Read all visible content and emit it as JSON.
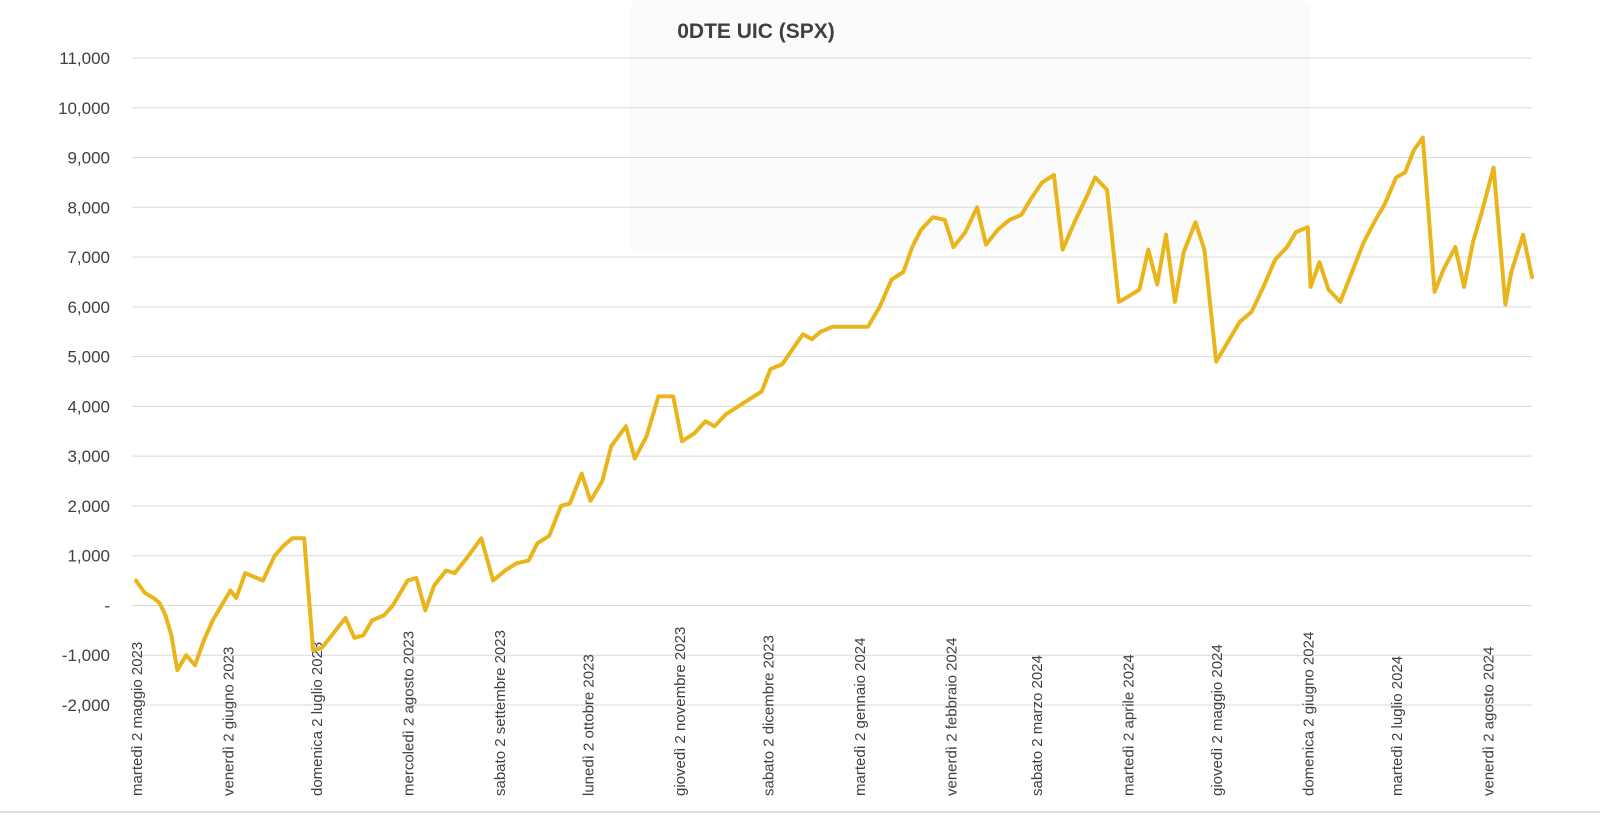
{
  "chart_data": {
    "type": "line",
    "title": "0DTE UIC (SPX)",
    "xlabel": "",
    "ylabel": "",
    "ylim": [
      -2000,
      11000
    ],
    "grid": true,
    "legend": "none",
    "line_color": "#e9b51a",
    "y_ticks": [
      {
        "value": 11000,
        "label": "11,000"
      },
      {
        "value": 10000,
        "label": "10,000"
      },
      {
        "value": 9000,
        "label": "9,000"
      },
      {
        "value": 8000,
        "label": "8,000"
      },
      {
        "value": 7000,
        "label": "7,000"
      },
      {
        "value": 6000,
        "label": "6,000"
      },
      {
        "value": 5000,
        "label": "5,000"
      },
      {
        "value": 4000,
        "label": "4,000"
      },
      {
        "value": 3000,
        "label": "3,000"
      },
      {
        "value": 2000,
        "label": "2,000"
      },
      {
        "value": 1000,
        "label": "1,000"
      },
      {
        "value": 0,
        "label": "-"
      },
      {
        "value": -1000,
        "label": "-1,000"
      },
      {
        "value": -2000,
        "label": "-2,000"
      }
    ],
    "x_ticks": [
      {
        "date": "2023-05-02",
        "label": "martedì 2 maggio 2023"
      },
      {
        "date": "2023-06-02",
        "label": "venerdì 2 giugno 2023"
      },
      {
        "date": "2023-07-02",
        "label": "domenica 2 luglio 2023"
      },
      {
        "date": "2023-08-02",
        "label": "mercoledì 2 agosto 2023"
      },
      {
        "date": "2023-09-02",
        "label": "sabato 2 settembre 2023"
      },
      {
        "date": "2023-10-02",
        "label": "lunedì 2 ottobre 2023"
      },
      {
        "date": "2023-11-02",
        "label": "giovedì 2 novembre 2023"
      },
      {
        "date": "2023-12-02",
        "label": "sabato 2 dicembre 2023"
      },
      {
        "date": "2024-01-02",
        "label": "martedì 2 gennaio 2024"
      },
      {
        "date": "2024-02-02",
        "label": "venerdì 2 febbraio 2024"
      },
      {
        "date": "2024-03-02",
        "label": "sabato 2 marzo 2024"
      },
      {
        "date": "2024-04-02",
        "label": "martedì 2 aprile 2024"
      },
      {
        "date": "2024-05-02",
        "label": "giovedì 2 maggio 2024"
      },
      {
        "date": "2024-06-02",
        "label": "domenica 2 giugno 2024"
      },
      {
        "date": "2024-07-02",
        "label": "martedì 2 luglio 2024"
      },
      {
        "date": "2024-08-02",
        "label": "venerdì 2 agosto 2024"
      }
    ],
    "x_range": [
      "2023-05-02",
      "2024-08-17"
    ],
    "series": [
      {
        "points": [
          [
            "2023-05-02",
            500
          ],
          [
            "2023-05-05",
            250
          ],
          [
            "2023-05-08",
            150
          ],
          [
            "2023-05-10",
            50
          ],
          [
            "2023-05-12",
            -200
          ],
          [
            "2023-05-14",
            -600
          ],
          [
            "2023-05-16",
            -1300
          ],
          [
            "2023-05-19",
            -1000
          ],
          [
            "2023-05-22",
            -1200
          ],
          [
            "2023-05-25",
            -700
          ],
          [
            "2023-05-28",
            -300
          ],
          [
            "2023-06-03",
            300
          ],
          [
            "2023-06-05",
            150
          ],
          [
            "2023-06-08",
            650
          ],
          [
            "2023-06-14",
            500
          ],
          [
            "2023-06-18",
            1000
          ],
          [
            "2023-06-21",
            1200
          ],
          [
            "2023-06-24",
            1350
          ],
          [
            "2023-06-28",
            1350
          ],
          [
            "2023-07-01",
            -900
          ],
          [
            "2023-07-04",
            -850
          ],
          [
            "2023-07-08",
            -550
          ],
          [
            "2023-07-12",
            -250
          ],
          [
            "2023-07-15",
            -650
          ],
          [
            "2023-07-18",
            -600
          ],
          [
            "2023-07-21",
            -300
          ],
          [
            "2023-07-25",
            -200
          ],
          [
            "2023-07-28",
            0
          ],
          [
            "2023-08-02",
            500
          ],
          [
            "2023-08-05",
            550
          ],
          [
            "2023-08-08",
            -100
          ],
          [
            "2023-08-11",
            400
          ],
          [
            "2023-08-15",
            700
          ],
          [
            "2023-08-18",
            650
          ],
          [
            "2023-08-22",
            950
          ],
          [
            "2023-08-27",
            1350
          ],
          [
            "2023-08-31",
            500
          ],
          [
            "2023-09-04",
            700
          ],
          [
            "2023-09-08",
            850
          ],
          [
            "2023-09-12",
            900
          ],
          [
            "2023-09-15",
            1250
          ],
          [
            "2023-09-19",
            1400
          ],
          [
            "2023-09-23",
            2000
          ],
          [
            "2023-09-26",
            2050
          ],
          [
            "2023-09-30",
            2650
          ],
          [
            "2023-10-03",
            2100
          ],
          [
            "2023-10-07",
            2500
          ],
          [
            "2023-10-10",
            3200
          ],
          [
            "2023-10-15",
            3600
          ],
          [
            "2023-10-18",
            2950
          ],
          [
            "2023-10-22",
            3400
          ],
          [
            "2023-10-26",
            4200
          ],
          [
            "2023-10-31",
            4200
          ],
          [
            "2023-11-03",
            3300
          ],
          [
            "2023-11-07",
            3450
          ],
          [
            "2023-11-11",
            3700
          ],
          [
            "2023-11-14",
            3600
          ],
          [
            "2023-11-18",
            3850
          ],
          [
            "2023-11-22",
            4000
          ],
          [
            "2023-11-26",
            4150
          ],
          [
            "2023-11-30",
            4300
          ],
          [
            "2023-12-03",
            4750
          ],
          [
            "2023-12-07",
            4850
          ],
          [
            "2023-12-11",
            5200
          ],
          [
            "2023-12-14",
            5450
          ],
          [
            "2023-12-17",
            5350
          ],
          [
            "2023-12-20",
            5500
          ],
          [
            "2023-12-24",
            5600
          ],
          [
            "2024-01-02",
            5600
          ],
          [
            "2024-01-05",
            5600
          ],
          [
            "2024-01-09",
            6000
          ],
          [
            "2024-01-13",
            6550
          ],
          [
            "2024-01-17",
            6700
          ],
          [
            "2024-01-20",
            7200
          ],
          [
            "2024-01-23",
            7550
          ],
          [
            "2024-01-27",
            7800
          ],
          [
            "2024-01-31",
            7750
          ],
          [
            "2024-02-03",
            7200
          ],
          [
            "2024-02-07",
            7500
          ],
          [
            "2024-02-11",
            8000
          ],
          [
            "2024-02-14",
            7250
          ],
          [
            "2024-02-18",
            7550
          ],
          [
            "2024-02-22",
            7750
          ],
          [
            "2024-02-26",
            7850
          ],
          [
            "2024-02-29",
            8150
          ],
          [
            "2024-03-04",
            8500
          ],
          [
            "2024-03-08",
            8650
          ],
          [
            "2024-03-11",
            7150
          ],
          [
            "2024-03-15",
            7700
          ],
          [
            "2024-03-19",
            8200
          ],
          [
            "2024-03-22",
            8600
          ],
          [
            "2024-03-26",
            8350
          ],
          [
            "2024-03-30",
            6100
          ],
          [
            "2024-04-02",
            6200
          ],
          [
            "2024-04-06",
            6350
          ],
          [
            "2024-04-09",
            7150
          ],
          [
            "2024-04-12",
            6450
          ],
          [
            "2024-04-15",
            7450
          ],
          [
            "2024-04-18",
            6100
          ],
          [
            "2024-04-21",
            7100
          ],
          [
            "2024-04-25",
            7700
          ],
          [
            "2024-04-28",
            7150
          ],
          [
            "2024-05-02",
            4900
          ],
          [
            "2024-05-06",
            5300
          ],
          [
            "2024-05-10",
            5700
          ],
          [
            "2024-05-14",
            5900
          ],
          [
            "2024-05-18",
            6400
          ],
          [
            "2024-05-22",
            6950
          ],
          [
            "2024-05-26",
            7200
          ],
          [
            "2024-05-29",
            7500
          ],
          [
            "2024-06-02",
            7600
          ],
          [
            "2024-06-03",
            6400
          ],
          [
            "2024-06-06",
            6900
          ],
          [
            "2024-06-09",
            6350
          ],
          [
            "2024-06-13",
            6100
          ],
          [
            "2024-06-17",
            6700
          ],
          [
            "2024-06-21",
            7300
          ],
          [
            "2024-06-25",
            7750
          ],
          [
            "2024-06-28",
            8050
          ],
          [
            "2024-07-02",
            8600
          ],
          [
            "2024-07-05",
            8700
          ],
          [
            "2024-07-08",
            9150
          ],
          [
            "2024-07-11",
            9400
          ],
          [
            "2024-07-15",
            6300
          ],
          [
            "2024-07-18",
            6750
          ],
          [
            "2024-07-22",
            7200
          ],
          [
            "2024-07-25",
            6400
          ],
          [
            "2024-07-28",
            7300
          ],
          [
            "2024-07-31",
            7900
          ],
          [
            "2024-08-04",
            8800
          ],
          [
            "2024-08-08",
            6050
          ],
          [
            "2024-08-10",
            6700
          ],
          [
            "2024-08-14",
            7450
          ],
          [
            "2024-08-17",
            6600
          ]
        ]
      }
    ]
  }
}
